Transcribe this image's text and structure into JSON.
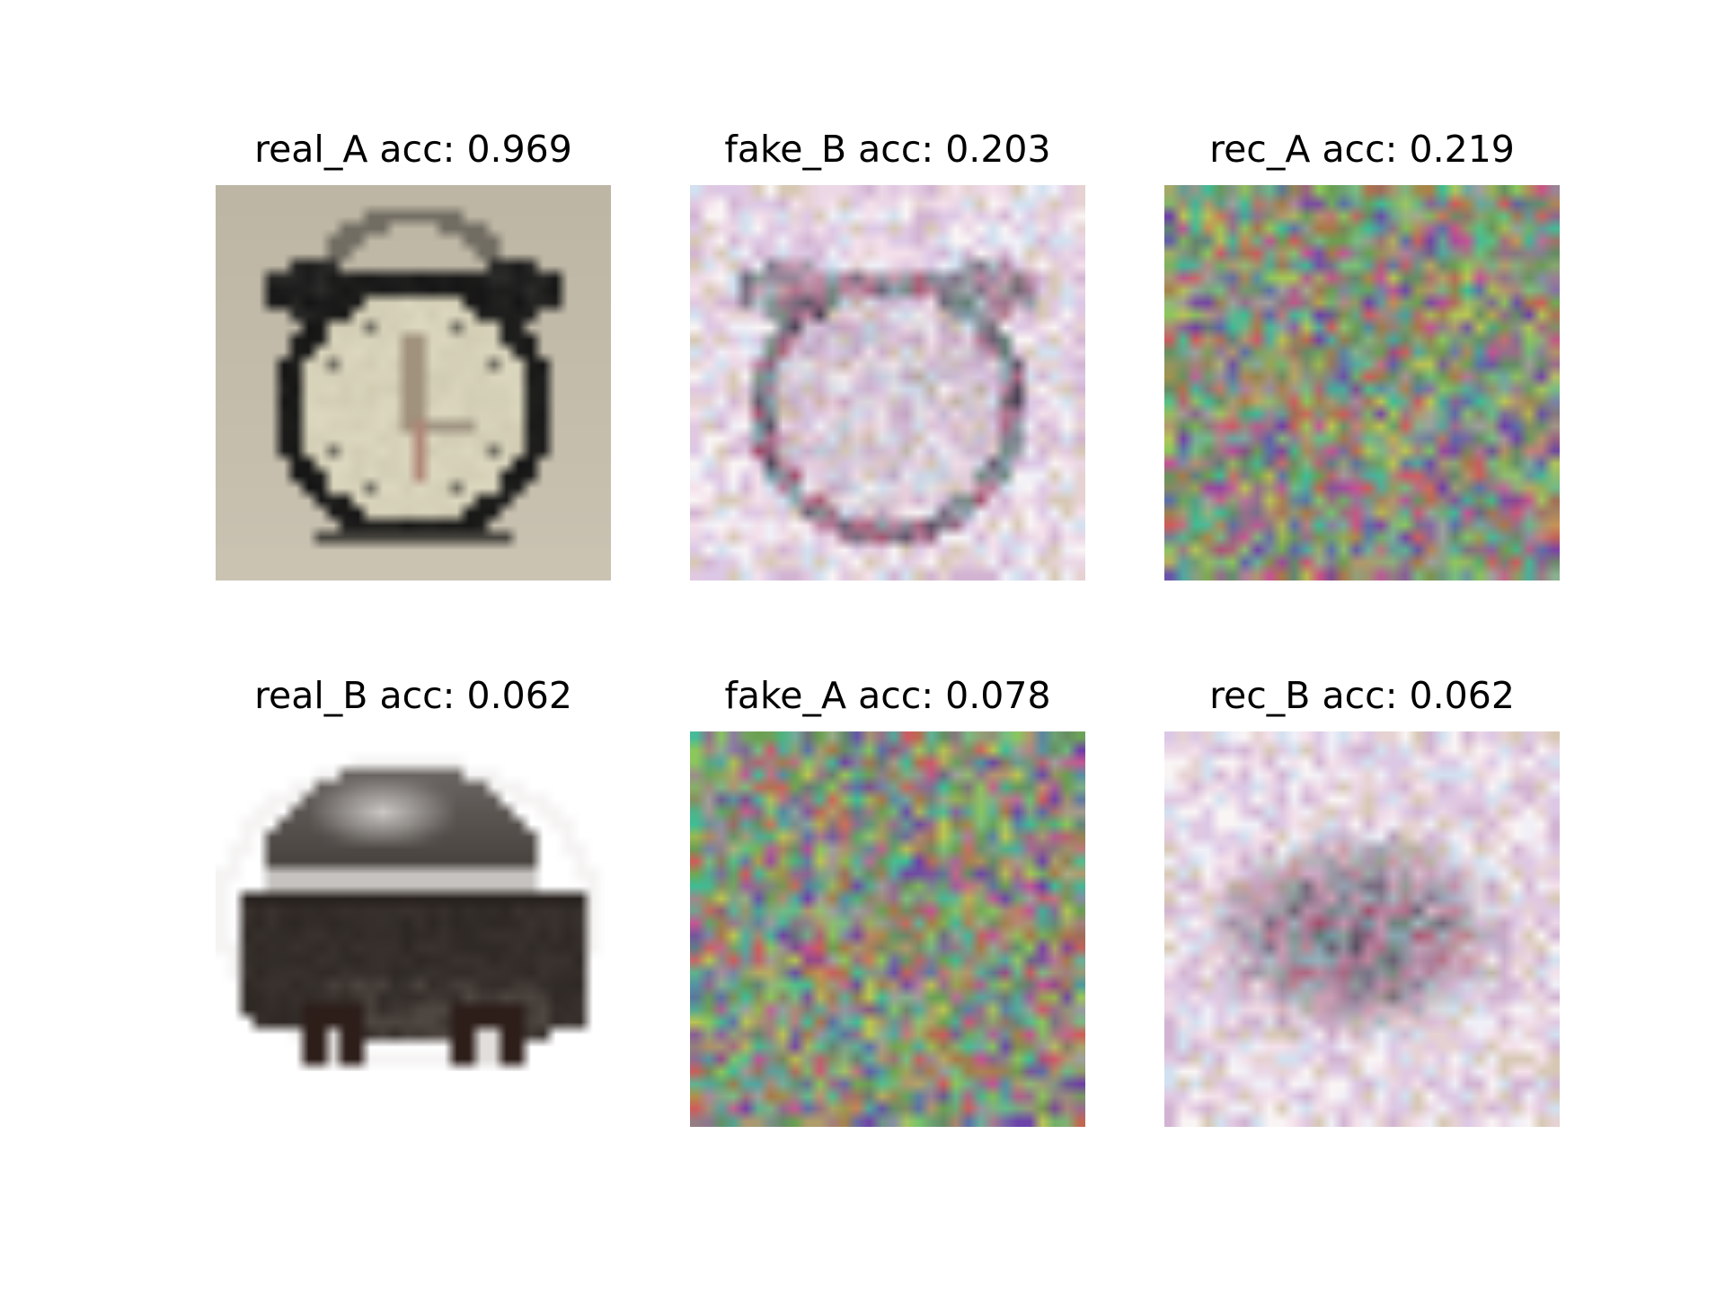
{
  "figure": {
    "panels": [
      {
        "label": "real_A",
        "acc_text": "acc: 0.969",
        "accuracy": 0.969,
        "content": "alarm-clock",
        "grid": 32
      },
      {
        "label": "fake_B",
        "acc_text": "acc: 0.203",
        "accuracy": 0.203,
        "content": "faint-clock-noise",
        "grid": 32
      },
      {
        "label": "rec_A",
        "acc_text": "acc: 0.219",
        "accuracy": 0.219,
        "content": "color-noise",
        "grid": 32
      },
      {
        "label": "real_B",
        "acc_text": "acc: 0.062",
        "accuracy": 0.062,
        "content": "dark-helmet",
        "grid": 32
      },
      {
        "label": "fake_A",
        "acc_text": "acc: 0.078",
        "accuracy": 0.078,
        "content": "color-noise",
        "grid": 32
      },
      {
        "label": "rec_B",
        "acc_text": "acc: 0.062",
        "accuracy": 0.062,
        "content": "faint-blob-noise",
        "grid": 32
      }
    ],
    "colors": {
      "background": "#ffffff",
      "clock_bg": "#bdb6a4",
      "clock_face": "#ddd8c0",
      "clock_ring": "#141414",
      "helmet_dark": "#2e2824",
      "helmet_light": "#d9d6d3"
    }
  }
}
